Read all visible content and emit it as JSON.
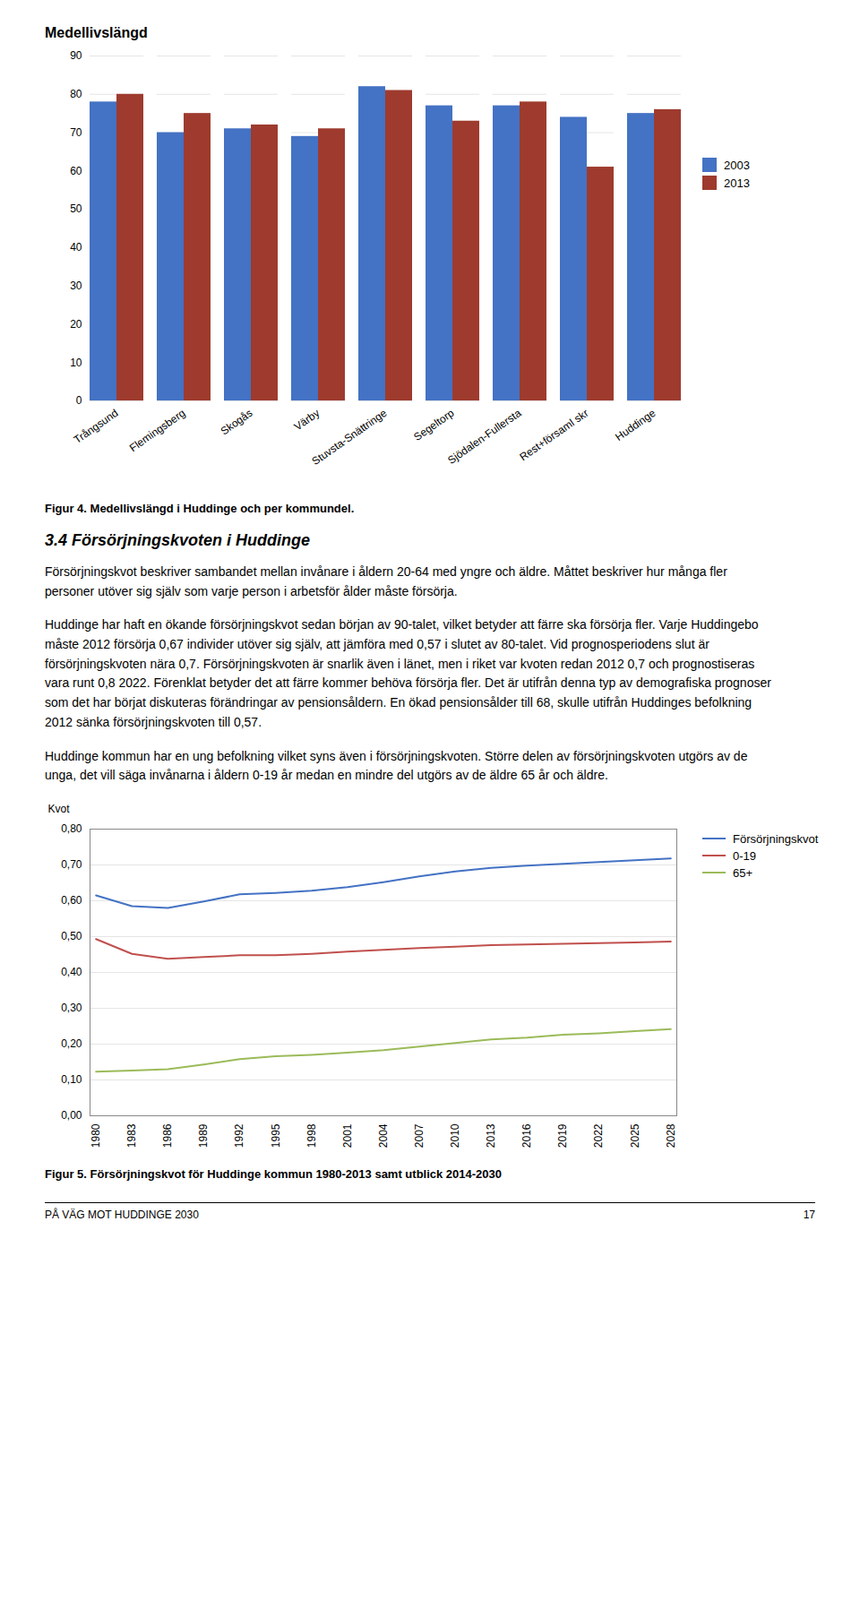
{
  "chart_data": [
    {
      "type": "bar",
      "title": "Medellivslängd",
      "categories": [
        "Trångsund",
        "Flemingsberg",
        "Skogås",
        "Värby",
        "Stuvsta-Snättringe",
        "Segeltorp",
        "Sjödalen-Fullersta",
        "Rest+församl skr",
        "Huddinge"
      ],
      "series": [
        {
          "name": "2003",
          "color": "#4472C4",
          "values": [
            78,
            70,
            71,
            69,
            82,
            77,
            77,
            74,
            75
          ]
        },
        {
          "name": "2013",
          "color": "#9E3B2E",
          "values": [
            80,
            75,
            72,
            71,
            81,
            73,
            78,
            61,
            76
          ]
        }
      ],
      "ylim": [
        0,
        90
      ],
      "yticks": [
        0,
        10,
        20,
        30,
        40,
        50,
        60,
        70,
        80,
        90
      ],
      "grid": true,
      "legend": "right",
      "caption": "Figur 4. Medellivslängd i Huddinge och per kommundel."
    },
    {
      "type": "line",
      "ylabel": "Kvot",
      "x": [
        1980,
        1983,
        1986,
        1989,
        1992,
        1995,
        1998,
        2001,
        2004,
        2007,
        2010,
        2013,
        2016,
        2019,
        2022,
        2025,
        2028
      ],
      "series": [
        {
          "name": "Försörjningskvot",
          "color": "#4472C4",
          "values": [
            0.615,
            0.585,
            0.58,
            0.598,
            0.618,
            0.622,
            0.628,
            0.638,
            0.652,
            0.668,
            0.682,
            0.692,
            0.698,
            0.703,
            0.708,
            0.713,
            0.718
          ]
        },
        {
          "name": "0-19",
          "color": "#C0504D",
          "values": [
            0.493,
            0.452,
            0.438,
            0.443,
            0.448,
            0.448,
            0.452,
            0.458,
            0.463,
            0.468,
            0.472,
            0.476,
            0.478,
            0.48,
            0.482,
            0.484,
            0.486
          ]
        },
        {
          "name": "65+",
          "color": "#9BBB59",
          "values": [
            0.123,
            0.126,
            0.13,
            0.143,
            0.158,
            0.166,
            0.17,
            0.176,
            0.183,
            0.193,
            0.203,
            0.213,
            0.218,
            0.226,
            0.23,
            0.236,
            0.242
          ]
        }
      ],
      "xlim": [
        1979.5,
        2028.5
      ],
      "xticks": [
        1980,
        1983,
        1986,
        1989,
        1992,
        1995,
        1998,
        2001,
        2004,
        2007,
        2010,
        2013,
        2016,
        2019,
        2022,
        2025,
        2028
      ],
      "ylim": [
        0.0,
        0.8
      ],
      "yticks": [
        {
          "value": 0.0,
          "label": "0,00"
        },
        {
          "value": 0.1,
          "label": "0,10"
        },
        {
          "value": 0.2,
          "label": "0,20"
        },
        {
          "value": 0.3,
          "label": "0,30"
        },
        {
          "value": 0.4,
          "label": "0,40"
        },
        {
          "value": 0.5,
          "label": "0,50"
        },
        {
          "value": 0.6,
          "label": "0,60"
        },
        {
          "value": 0.7,
          "label": "0,70"
        },
        {
          "value": 0.8,
          "label": "0,80"
        }
      ],
      "grid": true,
      "legend": "right",
      "caption": "Figur 5. Försörjningskvot för Huddinge kommun 1980-2013 samt utblick 2014-2030"
    }
  ],
  "annotations": [
    "3.4 Försörjningskvoten i Huddinge",
    "Försörjningskvot beskriver sambandet mellan invånare i åldern 20-64 med yngre och äldre. Måttet beskriver hur många fler personer utöver sig själv som varje person i arbetsför ålder måste försörja.",
    "Huddinge har haft en ökande försörjningskvot sedan början av 90-talet, vilket betyder att färre ska försörja fler. Varje Huddingebo måste 2012 försörja 0,67 individer utöver sig själv, att jämföra med 0,57 i slutet av 80-talet. Vid prognosperiodens slut är försörjningskvoten nära 0,7. Försörjningskvoten är snarlik även i länet, men i riket var kvoten redan 2012 0,7 och prognostiseras vara runt 0,8 2022. Förenklat betyder det att färre kommer behöva försörja fler. Det är utifrån denna typ av demografiska prognoser som det har börjat diskuteras förändringar av pensionsåldern. En ökad pensionsålder till 68, skulle utifrån Huddinges befolkning 2012 sänka försörjningskvoten till 0,57.",
    "Huddinge kommun har en ung befolkning vilket syns även i försörjningskvoten. Större delen av försörjningskvoten utgörs av de unga, det vill säga invånarna i åldern 0-19 år medan en mindre del utgörs av de äldre 65 år och äldre."
  ],
  "footer": [
    "PÅ VÄG MOT HUDDINGE 2030",
    "17"
  ]
}
